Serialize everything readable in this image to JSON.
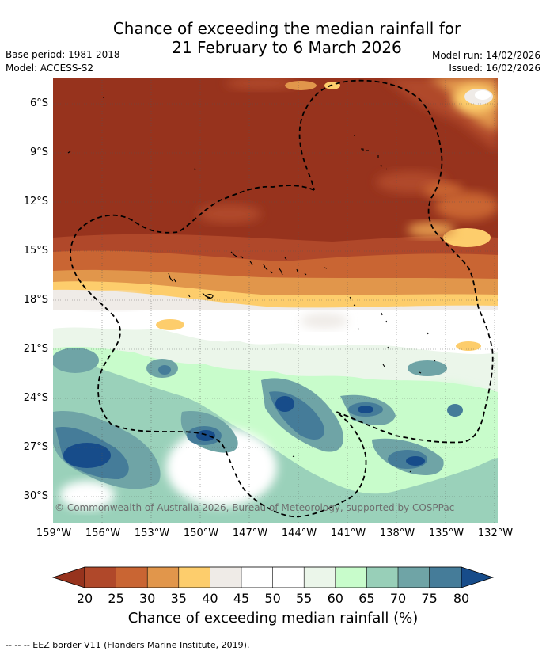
{
  "title": {
    "line1": "Chance of exceeding the median rainfall for",
    "line2": "21 February to 6 March 2026"
  },
  "meta": {
    "base_period": "Base period: 1981-2018",
    "model": "Model: ACCESS-S2",
    "model_run": "Model run: 14/02/2026",
    "issued": "Issued: 16/02/2026"
  },
  "map": {
    "lat_ticks": [
      "6°S",
      "9°S",
      "12°S",
      "15°S",
      "18°S",
      "21°S",
      "24°S",
      "27°S",
      "30°S"
    ],
    "lon_ticks": [
      "159°W",
      "156°W",
      "153°W",
      "150°W",
      "147°W",
      "144°W",
      "141°W",
      "138°W",
      "135°W",
      "132°W"
    ],
    "copyright": "© Commonwealth of Australia 2026, Bureau of Meteorology, supported by COSPPac"
  },
  "colorbar": {
    "ticks": [
      "20",
      "25",
      "30",
      "35",
      "40",
      "45",
      "50",
      "55",
      "60",
      "65",
      "70",
      "75",
      "80"
    ],
    "label": "Chance of exceeding median rainfall (%)",
    "colors": [
      "#97331d",
      "#b0482a",
      "#c96533",
      "#e1964b",
      "#fdcd6c",
      "#efebe7",
      "#ffffff",
      "#ffffff",
      "#ebf6ea",
      "#c8fccb",
      "#98cfb8",
      "#6fa4a6",
      "#457c99",
      "#174c8a"
    ]
  },
  "footnote": "--  --  -- EEZ border V11 (Flanders Marine Institute, 2019)."
}
